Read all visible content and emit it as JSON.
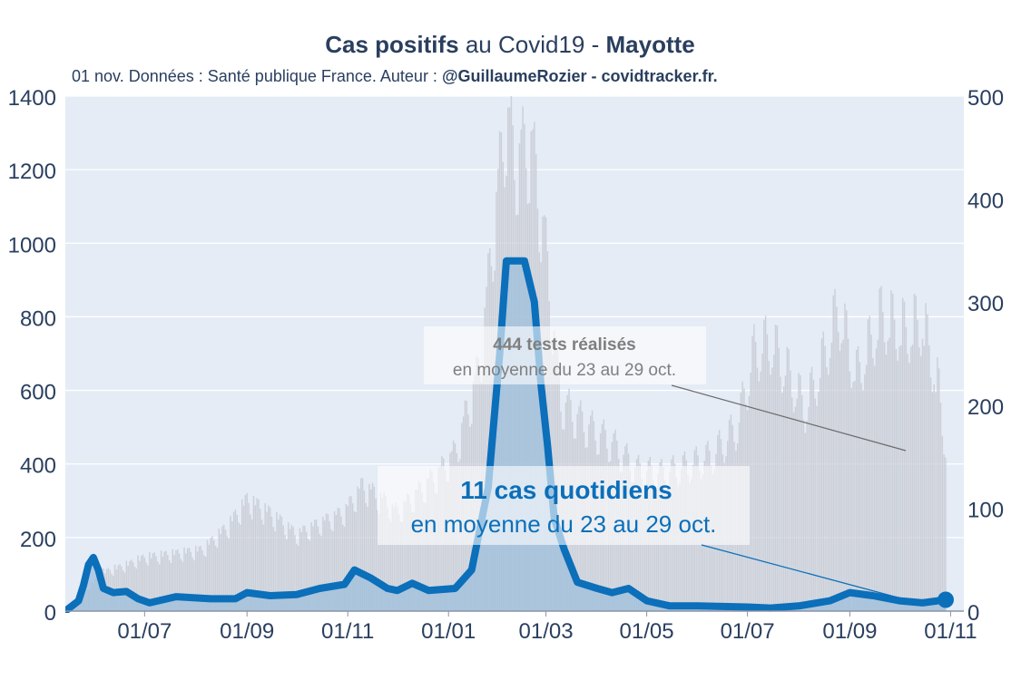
{
  "header": {
    "title_bold_1": "Cas positifs",
    "title_mid": " au Covid19 - ",
    "title_bold_2": "Mayotte",
    "subtitle_plain": "01 nov. Données : Santé publique France. Auteur : ",
    "subtitle_bold": "@GuillaumeRozier - covidtracker.fr."
  },
  "annotations": {
    "tests": {
      "bold": "444 tests réalisés",
      "line2": "en moyenne du 23 au 29 oct."
    },
    "cases": {
      "bold": "11 cas quotidiens",
      "line2": "en moyenne du 23 au 29 oct."
    }
  },
  "colors": {
    "background": "#e5ecf6",
    "cases_line": "#0b6fba",
    "cases_fill": "#9dbfdc",
    "tests_bars": "#c9ccd4",
    "text": "#2a3f5f",
    "tests_annotation": "#7f7f7f"
  },
  "chart_data": {
    "type": "line",
    "x_range": [
      "2020-05-14",
      "2021-11-09"
    ],
    "x_ticks": [
      "2020-07-01",
      "2020-09-01",
      "2020-11-01",
      "2021-01-01",
      "2021-03-01",
      "2021-05-01",
      "2021-07-01",
      "2021-09-01",
      "2021-11-01"
    ],
    "x_tick_labels": [
      "01/07",
      "01/09",
      "01/11",
      "01/01",
      "01/03",
      "01/05",
      "01/07",
      "01/09",
      "01/11"
    ],
    "y_left": {
      "range": [
        0,
        1400
      ],
      "ticks": [
        0,
        200,
        400,
        600,
        800,
        1000,
        1200,
        1400
      ]
    },
    "y_right": {
      "range": [
        0,
        500
      ],
      "ticks": [
        0,
        100,
        200,
        300,
        400,
        500
      ]
    },
    "series": [
      {
        "axis": "left",
        "kind": "bars",
        "points": [
          [
            "2020-05-17",
            10
          ],
          [
            "2020-05-28",
            60
          ],
          [
            "2020-06-05",
            100
          ],
          [
            "2020-06-20",
            120
          ],
          [
            "2020-07-01",
            140
          ],
          [
            "2020-07-20",
            150
          ],
          [
            "2020-08-05",
            160
          ],
          [
            "2020-08-20",
            220
          ],
          [
            "2020-09-01",
            290
          ],
          [
            "2020-09-10",
            270
          ],
          [
            "2020-09-20",
            240
          ],
          [
            "2020-10-01",
            200
          ],
          [
            "2020-10-15",
            230
          ],
          [
            "2020-10-30",
            260
          ],
          [
            "2020-11-10",
            330
          ],
          [
            "2020-11-20",
            300
          ],
          [
            "2020-12-01",
            260
          ],
          [
            "2020-12-15",
            320
          ],
          [
            "2020-12-25",
            360
          ],
          [
            "2021-01-05",
            420
          ],
          [
            "2021-01-20",
            650
          ],
          [
            "2021-01-28",
            1000
          ],
          [
            "2021-02-05",
            1330
          ],
          [
            "2021-02-10",
            1200
          ],
          [
            "2021-02-20",
            1250
          ],
          [
            "2021-02-28",
            1000
          ],
          [
            "2021-03-10",
            560
          ],
          [
            "2021-03-25",
            500
          ],
          [
            "2021-04-10",
            450
          ],
          [
            "2021-04-25",
            380
          ],
          [
            "2021-05-10",
            370
          ],
          [
            "2021-05-25",
            390
          ],
          [
            "2021-06-10",
            420
          ],
          [
            "2021-06-25",
            500
          ],
          [
            "2021-07-05",
            700
          ],
          [
            "2021-07-15",
            730
          ],
          [
            "2021-07-25",
            650
          ],
          [
            "2021-08-05",
            550
          ],
          [
            "2021-08-15",
            670
          ],
          [
            "2021-08-25",
            820
          ],
          [
            "2021-09-05",
            640
          ],
          [
            "2021-09-20",
            800
          ],
          [
            "2021-10-05",
            760
          ],
          [
            "2021-10-15",
            790
          ],
          [
            "2021-10-25",
            600
          ],
          [
            "2021-10-29",
            444
          ]
        ]
      },
      {
        "axis": "right",
        "kind": "line",
        "points": [
          [
            "2020-05-14",
            0
          ],
          [
            "2020-05-18",
            5
          ],
          [
            "2020-05-22",
            10
          ],
          [
            "2020-05-25",
            25
          ],
          [
            "2020-05-28",
            45
          ],
          [
            "2020-05-31",
            52
          ],
          [
            "2020-06-03",
            40
          ],
          [
            "2020-06-06",
            22
          ],
          [
            "2020-06-12",
            18
          ],
          [
            "2020-06-20",
            19
          ],
          [
            "2020-06-27",
            12
          ],
          [
            "2020-07-04",
            8
          ],
          [
            "2020-07-20",
            14
          ],
          [
            "2020-08-10",
            12
          ],
          [
            "2020-08-25",
            12
          ],
          [
            "2020-09-01",
            18
          ],
          [
            "2020-09-15",
            15
          ],
          [
            "2020-10-01",
            16
          ],
          [
            "2020-10-15",
            22
          ],
          [
            "2020-10-30",
            26
          ],
          [
            "2020-11-05",
            40
          ],
          [
            "2020-11-15",
            32
          ],
          [
            "2020-11-25",
            22
          ],
          [
            "2020-12-01",
            20
          ],
          [
            "2020-12-10",
            27
          ],
          [
            "2020-12-20",
            20
          ],
          [
            "2021-01-05",
            22
          ],
          [
            "2021-01-15",
            40
          ],
          [
            "2021-01-25",
            120
          ],
          [
            "2021-02-01",
            250
          ],
          [
            "2021-02-05",
            340
          ],
          [
            "2021-02-10",
            340
          ],
          [
            "2021-02-16",
            340
          ],
          [
            "2021-02-22",
            300
          ],
          [
            "2021-02-26",
            220
          ],
          [
            "2021-03-02",
            160
          ],
          [
            "2021-03-06",
            90
          ],
          [
            "2021-03-12",
            60
          ],
          [
            "2021-03-20",
            28
          ],
          [
            "2021-04-01",
            22
          ],
          [
            "2021-04-10",
            18
          ],
          [
            "2021-04-20",
            22
          ],
          [
            "2021-05-01",
            10
          ],
          [
            "2021-05-15",
            5
          ],
          [
            "2021-06-01",
            5
          ],
          [
            "2021-07-01",
            4
          ],
          [
            "2021-07-15",
            3
          ],
          [
            "2021-08-01",
            5
          ],
          [
            "2021-08-20",
            10
          ],
          [
            "2021-09-01",
            18
          ],
          [
            "2021-09-15",
            15
          ],
          [
            "2021-10-01",
            10
          ],
          [
            "2021-10-15",
            8
          ],
          [
            "2021-10-29",
            11
          ]
        ]
      }
    ]
  }
}
